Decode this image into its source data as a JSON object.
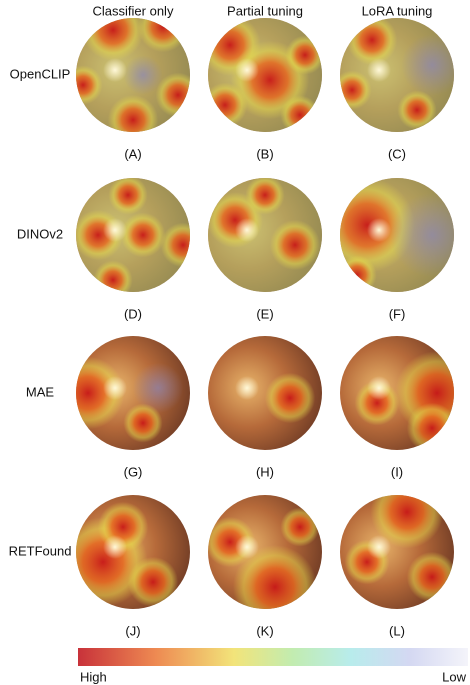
{
  "columns": [
    "Classifier only",
    "Partial tuning",
    "LoRA tuning"
  ],
  "rows": [
    "OpenCLIP",
    "DINOv2",
    "MAE",
    "RETFound"
  ],
  "panels": [
    "(A)",
    "(B)",
    "(C)",
    "(D)",
    "(E)",
    "(F)",
    "(G)",
    "(H)",
    "(I)",
    "(J)",
    "(K)",
    "(L)"
  ],
  "colorbar": {
    "high": "High",
    "low": "Low"
  }
}
